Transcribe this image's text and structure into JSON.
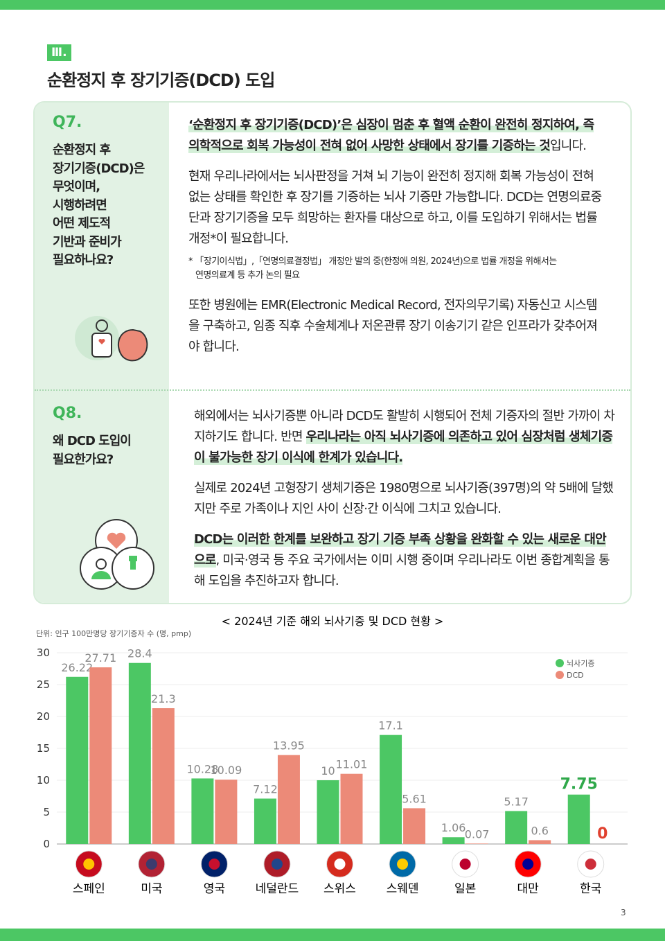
{
  "header": {
    "section": "Ⅲ.",
    "title": "순환정지 후 장기기증(DCD) 도입"
  },
  "q7": {
    "label": "Q7.",
    "question": [
      "순환정지 후",
      "장기기증(DCD)은",
      "무엇이며,",
      "시행하려면",
      "어떤 제도적",
      "기반과 준비가",
      "필요하나요?"
    ],
    "paragraphs": [
      [
        {
          "text": "‘순환정지 후 장기기증(DCD)’은 심장이 멈춘 후 혈액 순환이 완전히 정지하여, 즉 의학적으로 회복 가능성이 전혀 없어 사망한 상태에서 장기를 기증하는 것",
          "highlight": true
        },
        {
          "text": "입니다."
        }
      ],
      [
        {
          "text": "현재 우리나라에서는 뇌사판정을 거쳐 뇌 기능이 완전히 정지해 회복 가능성이 전혀 없는 상태를 확인한 후 장기를 기증하는 뇌사 기증만 가능합니다. DCD는 연명의료중단과 장기기증을 모두 희망하는 환자를 대상으로 하고, 이를 도입하기 위해서는 법률 개정*이 필요합니다."
        }
      ],
      [
        {
          "text": "또한 병원에는 EMR(Electronic Medical Record, 전자의무기록) 자동신고 시스템을 구축하고, 임종 직후 수술체계나 저온관류 장기 이송기기 같은 인프라가 갖추어져야 합니다."
        }
      ]
    ],
    "footnote": [
      "* 「장기이식법」,「연명의료결정법」 개정안 발의 중(한정애 의원, 2024년)으로 법률 개정을 위해서는",
      "연명의료계 등 추가 논의 필요"
    ]
  },
  "q8": {
    "label": "Q8.",
    "question": [
      "왜 DCD 도입이",
      "필요한가요?"
    ],
    "paragraphs": [
      [
        {
          "text": "해외에서는 뇌사기증뿐 아니라 DCD도 활발히 시행되어 전체 기증자의 절반 가까이 차지하기도 합니다. 반면 "
        },
        {
          "text": "우리나라는 아직 뇌사기증에 의존하고 있어 심장처럼 생체기증이 불가능한 장기 이식에 한계가 있습니다.",
          "highlight": true
        }
      ],
      [
        {
          "text": "실제로 2024년 고형장기 생체기증은 1980명으로 뇌사기증(397명)의 약 5배에 달했지만 주로 가족이나 지인 사이 신장·간 이식에 그치고 있습니다."
        }
      ],
      [
        {
          "text": "DCD는 이러한 한계를 보완하고 장기 기증 부족 상황을 완화할 수 있는 새로운 대안으로",
          "highlight": true
        },
        {
          "text": ", 미국·영국 등 주요 국가에서는 이미 시행 중이며 우리나라도 이번 종합계획을 통해 도입을 추진하고자 합니다."
        }
      ]
    ]
  },
  "chart_data": {
    "type": "bar",
    "title": "< 2024년 기준 해외 뇌사기증 및 DCD 현황 >",
    "unit": "단위: 인구 100만명당 장기기증자 수 (명, pmp)",
    "categories": [
      "스페인",
      "미국",
      "영국",
      "네덜란드",
      "스위스",
      "스웨덴",
      "일본",
      "대만",
      "한국"
    ],
    "series": [
      {
        "name": "뇌사기증",
        "color": "#4cc764",
        "values": [
          26.22,
          28.4,
          10.28,
          7.12,
          10,
          17.1,
          1.06,
          5.17,
          7.75
        ]
      },
      {
        "name": "DCD",
        "color": "#ec8a78",
        "values": [
          27.71,
          21.3,
          10.09,
          13.95,
          11.01,
          5.61,
          0.07,
          0.6,
          0
        ]
      }
    ],
    "ylim": [
      0,
      30
    ],
    "yticks": [
      0,
      5,
      10,
      15,
      20,
      25,
      30
    ],
    "grid": true,
    "legend": "top-right"
  },
  "page_number": "3"
}
